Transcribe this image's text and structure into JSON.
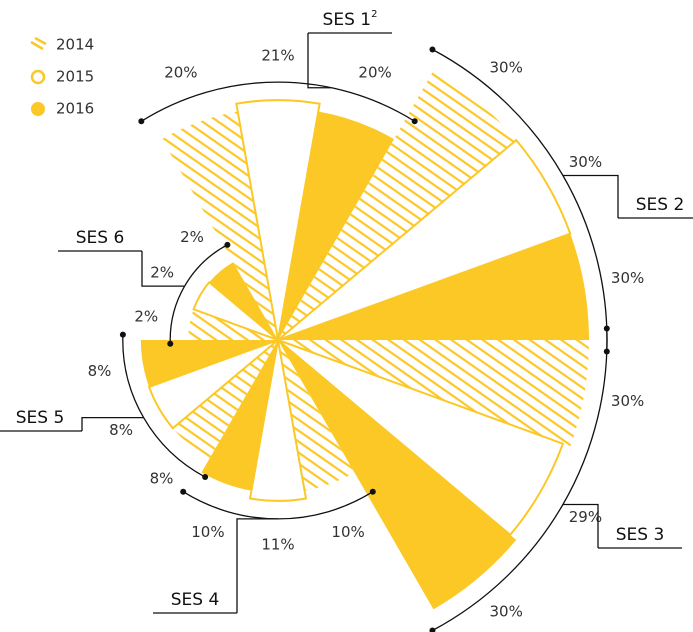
{
  "chart_data": {
    "type": "polar_bar",
    "categories": [
      "SES 1",
      "SES 2",
      "SES 3",
      "SES 4",
      "SES 5",
      "SES 6"
    ],
    "category_superscripts": [
      "2",
      null,
      null,
      null,
      null,
      null
    ],
    "series": [
      {
        "name": "2014",
        "color": "#fbc826",
        "style": "hatched",
        "values": [
          20,
          30,
          30,
          10,
          8,
          2
        ],
        "value_labels": [
          "20%",
          "30%",
          "30%",
          "10%",
          "8%",
          "2%"
        ]
      },
      {
        "name": "2015",
        "color": "#fbc826",
        "style": "outline",
        "values": [
          21,
          30,
          29,
          11,
          8,
          2
        ],
        "value_labels": [
          "21%",
          "30%",
          "29%",
          "11%",
          "8%",
          "2%"
        ]
      },
      {
        "name": "2016",
        "color": "#fbc826",
        "style": "filled",
        "values": [
          20,
          30,
          30,
          10,
          8,
          2
        ],
        "value_labels": [
          "20%",
          "30%",
          "30%",
          "10%",
          "8%",
          "2%"
        ]
      }
    ]
  }
}
